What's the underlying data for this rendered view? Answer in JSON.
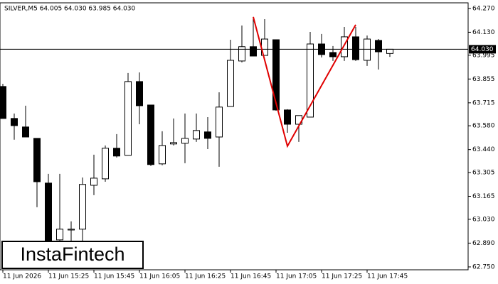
{
  "chart_data": {
    "type": "candlestick",
    "title": "SILVER,M5  64.005 64.030 63.985 64.030",
    "logo": "InstaFintech",
    "categories": [
      "11 Jun 2026",
      null,
      null,
      null,
      "11 Jun 15:25",
      null,
      null,
      null,
      "11 Jun 15:45",
      null,
      null,
      null,
      "11 Jun 16:05",
      null,
      null,
      null,
      "11 Jun 16:25",
      null,
      null,
      null,
      "11 Jun 16:45",
      null,
      null,
      null,
      "11 Jun 17:05",
      null,
      null,
      null,
      "11 Jun 17:25",
      null,
      null,
      null,
      "11 Jun 17:45",
      null,
      null
    ],
    "open": [
      63.811,
      63.623,
      63.573,
      63.506,
      63.243,
      62.909,
      62.967,
      62.972,
      63.23,
      63.268,
      63.448,
      63.406,
      63.84,
      63.702,
      63.356,
      63.473,
      63.477,
      63.502,
      63.544,
      63.514,
      63.694,
      63.961,
      64.045,
      63.994,
      64.086,
      63.673,
      63.589,
      63.631,
      64.061,
      64.011,
      63.986,
      64.103,
      63.965,
      64.082,
      64.005
    ],
    "high": [
      63.827,
      63.652,
      63.698,
      63.506,
      63.297,
      63.297,
      63.018,
      63.276,
      63.41,
      63.464,
      63.531,
      63.89,
      63.894,
      63.702,
      63.548,
      63.623,
      63.652,
      63.652,
      63.631,
      63.777,
      64.086,
      64.17,
      64.22,
      64.207,
      64.086,
      63.677,
      63.64,
      64.132,
      64.12,
      64.049,
      64.161,
      64.161,
      64.111,
      64.09,
      64.03
    ],
    "low": [
      63.623,
      63.498,
      63.514,
      63.101,
      62.817,
      62.901,
      62.88,
      62.901,
      63.172,
      63.251,
      63.393,
      63.406,
      63.589,
      63.343,
      63.348,
      63.464,
      63.36,
      63.485,
      63.443,
      63.339,
      63.694,
      63.953,
      63.99,
      63.994,
      63.669,
      63.539,
      63.485,
      63.631,
      63.982,
      63.961,
      63.961,
      63.961,
      63.932,
      63.911,
      63.985
    ],
    "close": [
      63.623,
      63.581,
      63.514,
      63.251,
      62.88,
      62.972,
      62.972,
      63.235,
      63.272,
      63.448,
      63.402,
      63.84,
      63.698,
      63.352,
      63.464,
      63.481,
      63.506,
      63.552,
      63.506,
      63.69,
      63.965,
      64.045,
      63.99,
      64.09,
      63.673,
      63.589,
      63.64,
      64.061,
      63.999,
      63.986,
      64.103,
      63.969,
      64.09,
      64.015,
      64.03
    ],
    "up_color": "#ffffff",
    "down_color": "#000000",
    "ylim": [
      62.733,
      64.303
    ],
    "yticks": [
      {
        "value": 64.27,
        "label": "64.270"
      },
      {
        "value": 64.13,
        "label": "64.130"
      },
      {
        "value": 63.995,
        "label": "63.995"
      },
      {
        "value": 63.855,
        "label": "63.855"
      },
      {
        "value": 63.715,
        "label": "63.715"
      },
      {
        "value": 63.58,
        "label": "63.580"
      },
      {
        "value": 63.44,
        "label": "63.440"
      },
      {
        "value": 63.305,
        "label": "63.305"
      },
      {
        "value": 63.165,
        "label": "63.165"
      },
      {
        "value": 63.03,
        "label": "63.030"
      },
      {
        "value": 62.89,
        "label": "62.890"
      },
      {
        "value": 62.75,
        "label": "62.750"
      }
    ],
    "price_line": {
      "value": 64.03,
      "label": "64.030"
    },
    "pattern_line": {
      "color": "#e00000",
      "points": [
        {
          "index": 22,
          "value": 64.22
        },
        {
          "index": 25,
          "value": 63.46
        },
        {
          "index": 31,
          "value": 64.174
        }
      ]
    }
  }
}
